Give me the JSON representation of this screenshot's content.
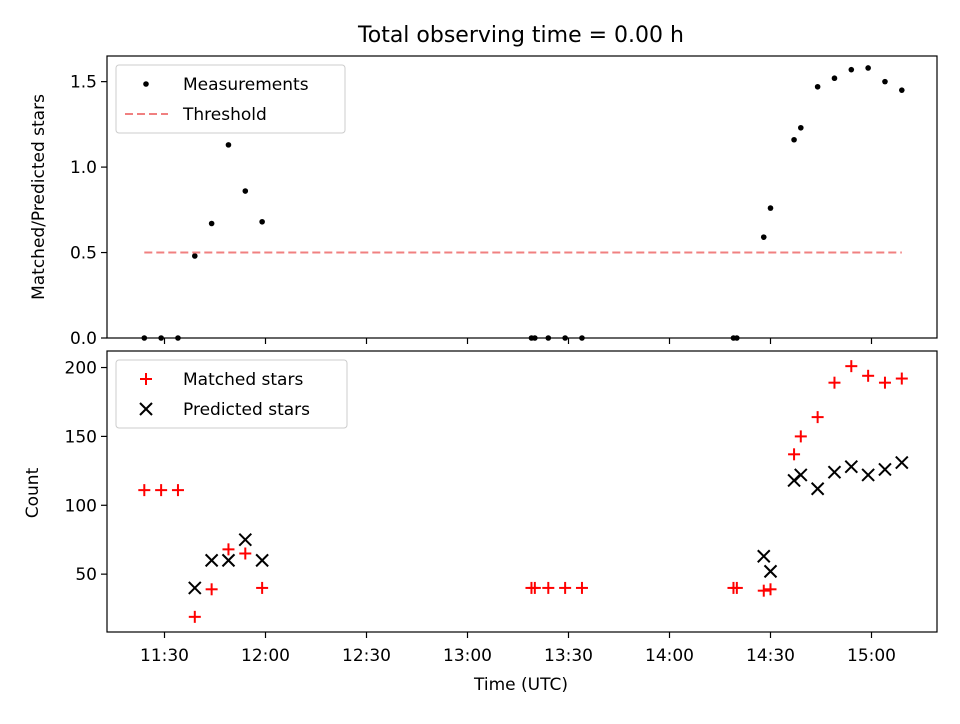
{
  "chart_data": [
    {
      "type": "scatter",
      "title": "Total observing time = 0.00 h",
      "ylabel": "Matched/Predicted stars",
      "xlabel": "",
      "ylim": [
        0,
        1.65
      ],
      "yticks": [
        0.0,
        0.5,
        1.0,
        1.5
      ],
      "ytick_labels": [
        "0.0",
        "0.5",
        "1.0",
        "1.5"
      ],
      "xticks": [
        "11:30",
        "12:00",
        "12:30",
        "13:00",
        "13:30",
        "14:00",
        "14:30",
        "15:00"
      ],
      "legend_position": "top-left",
      "series": [
        {
          "name": "Measurements",
          "marker": "dot",
          "color": "#000000",
          "points": [
            [
              "11:24",
              0.0
            ],
            [
              "11:29",
              0.0
            ],
            [
              "11:34",
              0.0
            ],
            [
              "11:39",
              0.48
            ],
            [
              "11:44",
              0.67
            ],
            [
              "11:49",
              1.13
            ],
            [
              "11:54",
              0.86
            ],
            [
              "11:59",
              0.68
            ],
            [
              "13:19",
              0.0
            ],
            [
              "13:20",
              0.0
            ],
            [
              "13:24",
              0.0
            ],
            [
              "13:29",
              0.0
            ],
            [
              "13:34",
              0.0
            ],
            [
              "14:19",
              0.0
            ],
            [
              "14:20",
              0.0
            ],
            [
              "14:28",
              0.59
            ],
            [
              "14:30",
              0.76
            ],
            [
              "14:37",
              1.16
            ],
            [
              "14:39",
              1.23
            ],
            [
              "14:44",
              1.47
            ],
            [
              "14:49",
              1.52
            ],
            [
              "14:54",
              1.57
            ],
            [
              "14:59",
              1.58
            ],
            [
              "15:04",
              1.5
            ],
            [
              "15:09",
              1.45
            ]
          ]
        },
        {
          "name": "Threshold",
          "line": "dashed",
          "color": "#f08080",
          "points": [
            [
              "11:24",
              0.5
            ],
            [
              "15:09",
              0.5
            ]
          ]
        }
      ]
    },
    {
      "type": "scatter",
      "title": "",
      "ylabel": "Count",
      "xlabel": "Time (UTC)",
      "ylim": [
        8,
        212
      ],
      "yticks": [
        50,
        100,
        150,
        200
      ],
      "ytick_labels": [
        "50",
        "100",
        "150",
        "200"
      ],
      "xticks": [
        "11:30",
        "12:00",
        "12:30",
        "13:00",
        "13:30",
        "14:00",
        "14:30",
        "15:00"
      ],
      "xtick_labels": [
        "11:30",
        "12:00",
        "12:30",
        "13:00",
        "13:30",
        "14:00",
        "14:30",
        "15:00"
      ],
      "legend_position": "top-left",
      "series": [
        {
          "name": "Matched stars",
          "marker": "plus",
          "color": "#ff0000",
          "points": [
            [
              "11:24",
              111
            ],
            [
              "11:29",
              111
            ],
            [
              "11:34",
              111
            ],
            [
              "11:39",
              19
            ],
            [
              "11:44",
              39
            ],
            [
              "11:49",
              68
            ],
            [
              "11:54",
              65
            ],
            [
              "11:59",
              40
            ],
            [
              "13:19",
              40
            ],
            [
              "13:20",
              40
            ],
            [
              "13:24",
              40
            ],
            [
              "13:29",
              40
            ],
            [
              "13:34",
              40
            ],
            [
              "14:19",
              40
            ],
            [
              "14:20",
              40
            ],
            [
              "14:28",
              38
            ],
            [
              "14:30",
              39
            ],
            [
              "14:37",
              137
            ],
            [
              "14:39",
              150
            ],
            [
              "14:44",
              164
            ],
            [
              "14:49",
              189
            ],
            [
              "14:54",
              201
            ],
            [
              "14:59",
              194
            ],
            [
              "15:04",
              189
            ],
            [
              "15:09",
              192
            ]
          ]
        },
        {
          "name": "Predicted stars",
          "marker": "x",
          "color": "#000000",
          "points": [
            [
              "11:39",
              40
            ],
            [
              "11:44",
              60
            ],
            [
              "11:49",
              60
            ],
            [
              "11:54",
              75
            ],
            [
              "11:59",
              60
            ],
            [
              "14:28",
              63
            ],
            [
              "14:30",
              52
            ],
            [
              "14:37",
              118
            ],
            [
              "14:39",
              122
            ],
            [
              "14:44",
              112
            ],
            [
              "14:49",
              124
            ],
            [
              "14:54",
              128
            ],
            [
              "14:59",
              122
            ],
            [
              "15:04",
              126
            ],
            [
              "15:09",
              131
            ]
          ]
        }
      ]
    }
  ]
}
